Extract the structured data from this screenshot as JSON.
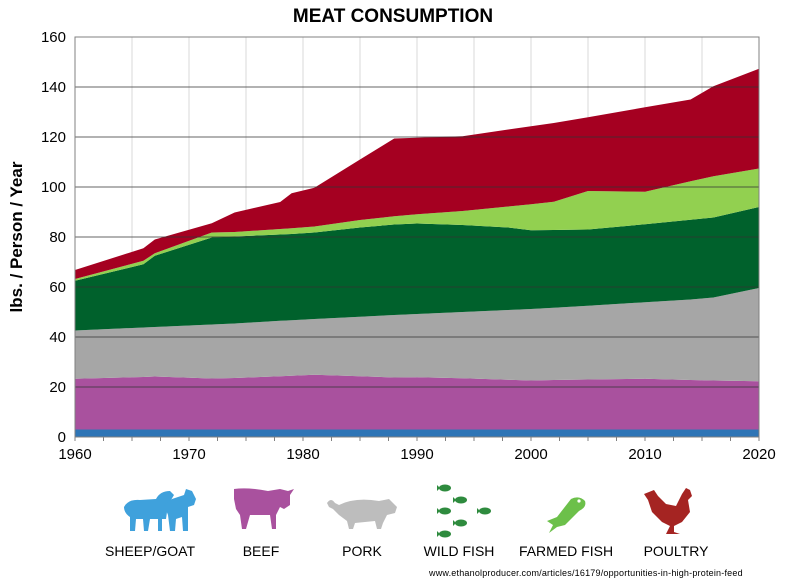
{
  "chart_data": {
    "type": "area",
    "stacked": true,
    "title": "MEAT CONSUMPTION",
    "xlabel": "",
    "ylabel": "lbs. / Person / Year",
    "xlim": [
      1960,
      2020
    ],
    "ylim": [
      0,
      160
    ],
    "xticks": [
      "1960",
      "1970",
      "1980",
      "1990",
      "2000",
      "2010",
      "2020"
    ],
    "yticks": [
      "0",
      "20",
      "40",
      "60",
      "80",
      "100",
      "120",
      "140",
      "160"
    ],
    "grid": {
      "horizontal": true,
      "vertical": true
    },
    "legend_placement": "bottom",
    "x": [
      1960,
      1966,
      1967,
      1972,
      1974,
      1978,
      1979,
      1981,
      1985,
      1988,
      1990,
      1994,
      1998,
      2000,
      2002,
      2005,
      2010,
      2014,
      2016,
      2020
    ],
    "series": [
      {
        "name": "SHEEP/GOAT",
        "color": "#2e75b6",
        "icon": "sheep-goat-icon",
        "values": [
          3,
          3,
          3,
          3,
          3,
          3,
          3,
          3,
          3,
          3,
          3,
          3,
          3,
          3,
          3,
          3,
          3,
          3,
          3,
          3
        ]
      },
      {
        "name": "BEEF",
        "color": "#a9519e",
        "icon": "cow-icon",
        "values": [
          20.3,
          21.0,
          21.2,
          20.4,
          20.6,
          21.3,
          21.5,
          21.9,
          21.3,
          20.8,
          20.9,
          20.5,
          19.9,
          19.6,
          19.8,
          20.0,
          20.3,
          19.8,
          19.6,
          19.3
        ]
      },
      {
        "name": "PORK",
        "color": "#a6a6a6",
        "icon": "pig-icon",
        "values": [
          19.3,
          19.8,
          19.8,
          21.6,
          21.8,
          22.2,
          22.2,
          22.3,
          23.8,
          25.0,
          25.3,
          26.5,
          27.9,
          28.6,
          28.9,
          29.5,
          30.6,
          32.2,
          33.2,
          37.3
        ]
      },
      {
        "name": "WILD FISH",
        "color": "#00612c",
        "icon": "fish-school-icon",
        "values": [
          19.9,
          25.3,
          28.5,
          34.8,
          34.8,
          34.5,
          34.5,
          34.6,
          35.7,
          36.2,
          36.2,
          34.8,
          33.0,
          31.5,
          31.1,
          30.5,
          31.2,
          31.9,
          32.0,
          32.4
        ]
      },
      {
        "name": "FARMED FISH",
        "color": "#92d050",
        "icon": "fish-icon",
        "values": [
          0.7,
          1.4,
          1.0,
          2.0,
          1.8,
          2.2,
          2.3,
          2.4,
          3.0,
          3.3,
          3.7,
          5.6,
          8.4,
          10.4,
          11.3,
          15.4,
          13.0,
          15.4,
          16.5,
          15.4
        ]
      },
      {
        "name": "POULTRY",
        "color": "#a50021",
        "icon": "chicken-icon",
        "values": [
          3.6,
          5.0,
          5.5,
          3.7,
          7.8,
          10.8,
          14.0,
          15.5,
          24.2,
          31.1,
          30.6,
          29.9,
          30.8,
          31.2,
          31.5,
          29.5,
          33.8,
          32.7,
          36.0,
          39.9
        ]
      }
    ]
  },
  "source": "www.ethanolproducer.com/articles/16179/opportunities-in-high-protein-feed"
}
